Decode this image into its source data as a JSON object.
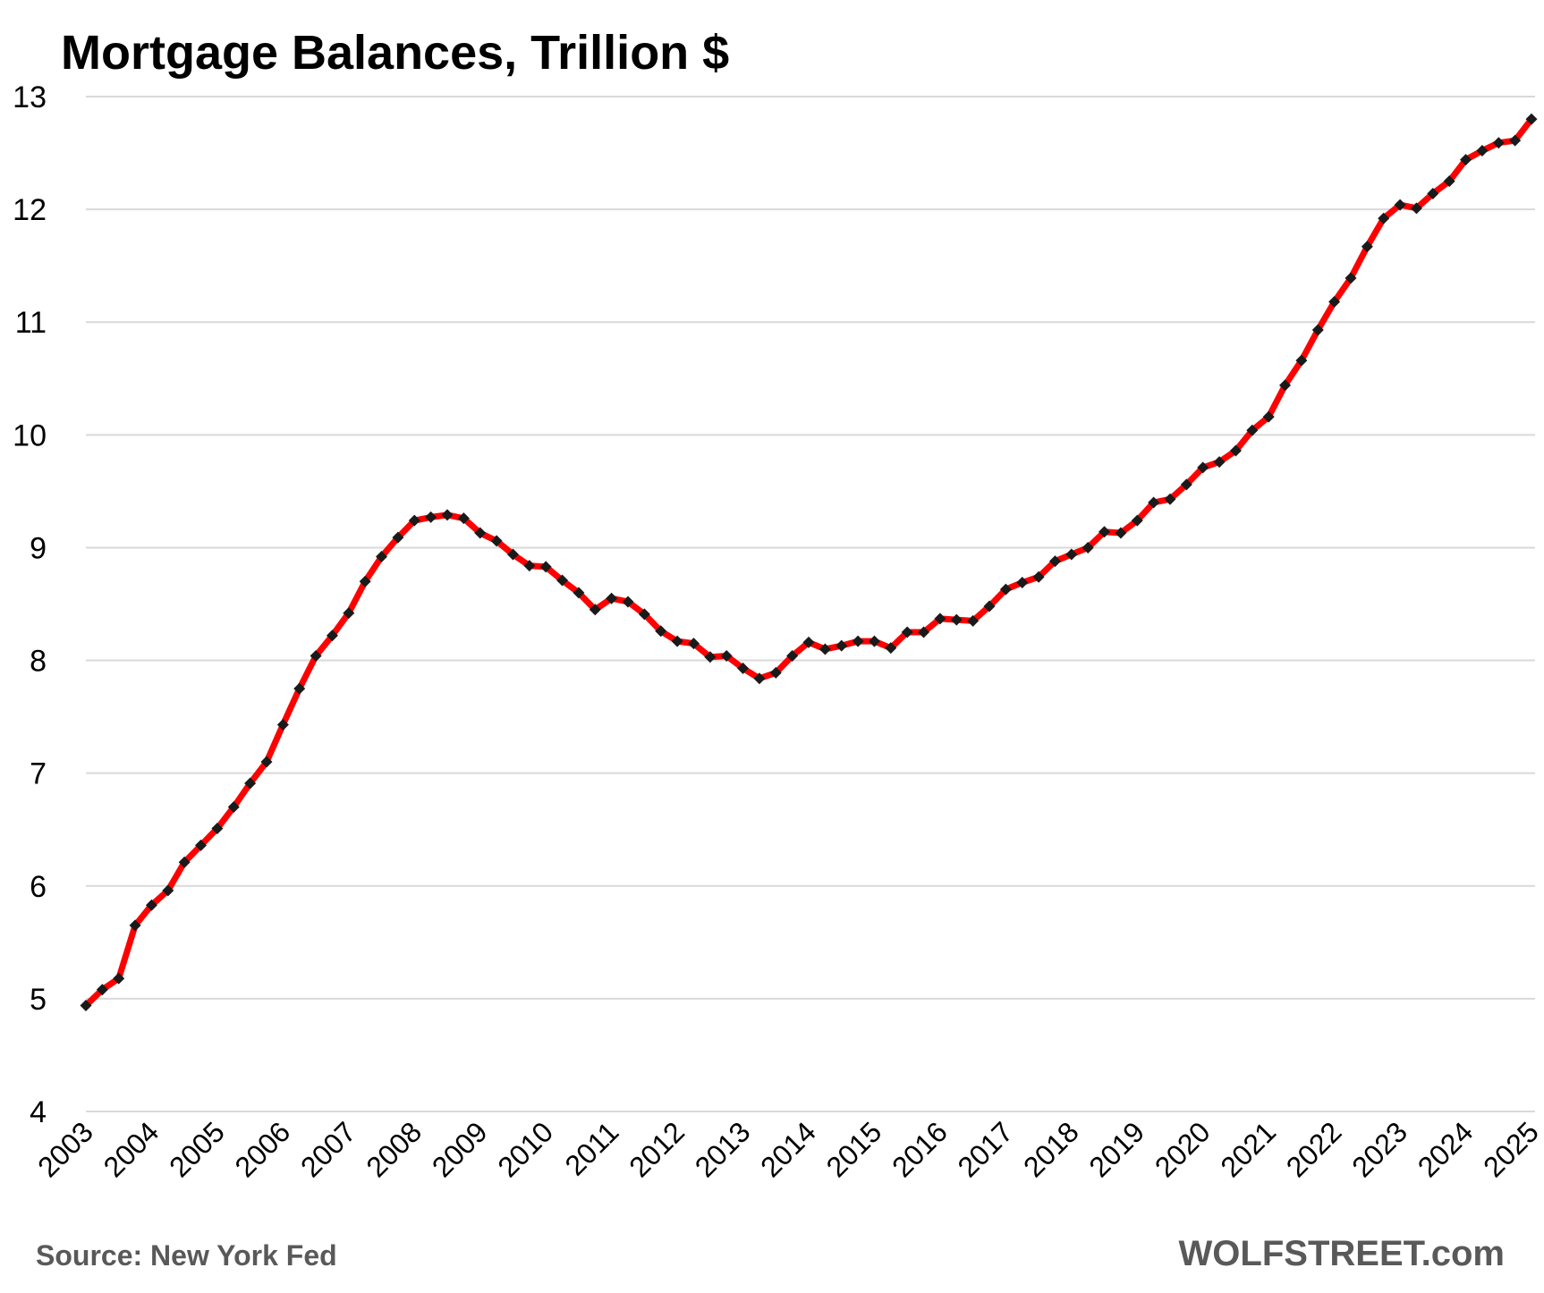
{
  "chart_data": {
    "type": "line",
    "title": "Mortgage Balances, Trillion $",
    "xlabel": "",
    "ylabel": "",
    "ylim": [
      4,
      13
    ],
    "yticks": [
      4,
      5,
      6,
      7,
      8,
      9,
      10,
      11,
      12,
      13
    ],
    "xlim": [
      2003,
      2025
    ],
    "xticks": [
      "2003",
      "2004",
      "2005",
      "2006",
      "2007",
      "2008",
      "2009",
      "2010",
      "2011",
      "2012",
      "2013",
      "2014",
      "2015",
      "2016",
      "2017",
      "2018",
      "2019",
      "2020",
      "2021",
      "2022",
      "2023",
      "2024",
      "2025"
    ],
    "grid": true,
    "line_color": "#ff0000",
    "marker_color": "#1a1a1a",
    "series": [
      {
        "x": [
          2003.0,
          2003.25,
          2003.5,
          2003.75,
          2004.0,
          2004.25,
          2004.5,
          2004.75,
          2005.0,
          2005.25,
          2005.5,
          2005.75,
          2006.0,
          2006.25,
          2006.5,
          2006.75,
          2007.0,
          2007.25,
          2007.5,
          2007.75,
          2008.0,
          2008.25,
          2008.5,
          2008.75,
          2009.0,
          2009.25,
          2009.5,
          2009.75,
          2010.0,
          2010.25,
          2010.5,
          2010.75,
          2011.0,
          2011.25,
          2011.5,
          2011.75,
          2012.0,
          2012.25,
          2012.5,
          2012.75,
          2013.0,
          2013.25,
          2013.5,
          2013.75,
          2014.0,
          2014.25,
          2014.5,
          2014.75,
          2015.0,
          2015.25,
          2015.5,
          2015.75,
          2016.0,
          2016.25,
          2016.5,
          2016.75,
          2017.0,
          2017.25,
          2017.5,
          2017.75,
          2018.0,
          2018.25,
          2018.5,
          2018.75,
          2019.0,
          2019.25,
          2019.5,
          2019.75,
          2020.0,
          2020.25,
          2020.5,
          2020.75,
          2021.0,
          2021.25,
          2021.5,
          2021.75,
          2022.0,
          2022.25,
          2022.5,
          2022.75,
          2023.0,
          2023.25,
          2023.5,
          2023.75,
          2024.0,
          2024.25,
          2024.5,
          2024.75,
          2025.0
        ],
        "y": [
          4.94,
          5.08,
          5.18,
          5.65,
          5.83,
          5.96,
          6.21,
          6.36,
          6.51,
          6.7,
          6.91,
          7.1,
          7.43,
          7.75,
          8.04,
          8.22,
          8.42,
          8.7,
          8.92,
          9.09,
          9.24,
          9.27,
          9.29,
          9.26,
          9.13,
          9.06,
          8.94,
          8.84,
          8.83,
          8.71,
          8.6,
          8.45,
          8.55,
          8.52,
          8.41,
          8.26,
          8.17,
          8.15,
          8.03,
          8.04,
          7.93,
          7.84,
          7.89,
          8.04,
          8.16,
          8.1,
          8.13,
          8.17,
          8.17,
          8.11,
          8.25,
          8.25,
          8.37,
          8.36,
          8.35,
          8.48,
          8.63,
          8.69,
          8.74,
          8.88,
          8.94,
          9.0,
          9.14,
          9.13,
          9.24,
          9.4,
          9.43,
          9.56,
          9.71,
          9.76,
          9.86,
          10.04,
          10.16,
          10.44,
          10.66,
          10.93,
          11.18,
          11.39,
          11.67,
          11.92,
          12.04,
          12.01,
          12.14,
          12.25,
          12.44,
          12.52,
          12.59,
          12.61,
          12.8
        ]
      }
    ]
  },
  "footer": {
    "source": "Source: New York Fed",
    "brand": "WOLFSTREET.com"
  }
}
